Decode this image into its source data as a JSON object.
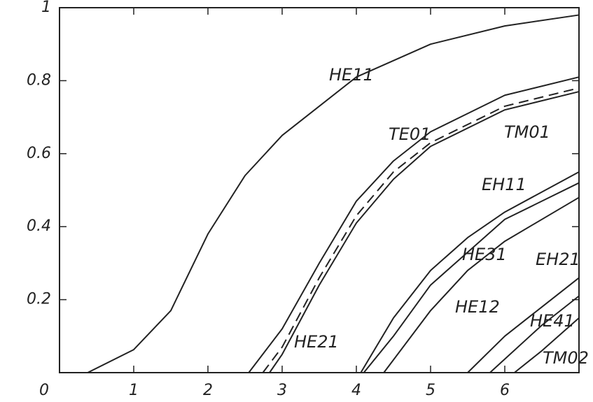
{
  "chart_data": {
    "type": "line",
    "xlim": [
      0,
      7
    ],
    "ylim": [
      0,
      1
    ],
    "xticks": [
      0,
      1,
      2,
      3,
      4,
      5,
      6
    ],
    "yticks": [
      0.2,
      0.4,
      0.6,
      0.8,
      1
    ],
    "grid": false,
    "series": [
      {
        "name": "HE11",
        "color": "#222222",
        "dashed": false,
        "x": [
          0.38,
          1,
          1.5,
          2,
          2.5,
          3,
          3.5,
          4,
          5,
          6,
          7
        ],
        "values": [
          0,
          0.063,
          0.17,
          0.38,
          0.54,
          0.65,
          0.73,
          0.81,
          0.9,
          0.95,
          0.98
        ]
      },
      {
        "name": "TE01",
        "color": "#222222",
        "dashed": false,
        "x": [
          2.55,
          3,
          3.5,
          4,
          4.5,
          5,
          5.5,
          6,
          7
        ],
        "values": [
          0,
          0.12,
          0.3,
          0.47,
          0.58,
          0.66,
          0.71,
          0.76,
          0.81
        ]
      },
      {
        "name": "TM01",
        "color": "#222222",
        "dashed": true,
        "x": [
          2.74,
          3,
          3.5,
          4,
          4.5,
          5,
          6,
          7
        ],
        "values": [
          0,
          0.07,
          0.26,
          0.43,
          0.55,
          0.63,
          0.73,
          0.78
        ]
      },
      {
        "name": "HE21",
        "color": "#222222",
        "dashed": false,
        "x": [
          2.83,
          3,
          3.5,
          4,
          4.5,
          5,
          6,
          7
        ],
        "values": [
          0,
          0.05,
          0.24,
          0.41,
          0.53,
          0.62,
          0.72,
          0.77
        ]
      },
      {
        "name": "EH11",
        "color": "#222222",
        "dashed": false,
        "x": [
          4.06,
          4.5,
          5,
          5.5,
          6,
          7
        ],
        "values": [
          0,
          0.15,
          0.28,
          0.37,
          0.44,
          0.55
        ]
      },
      {
        "name": "HE31",
        "color": "#222222",
        "dashed": false,
        "x": [
          4.1,
          4.5,
          5,
          5.5,
          6,
          7
        ],
        "values": [
          0,
          0.1,
          0.24,
          0.33,
          0.42,
          0.52
        ]
      },
      {
        "name": "HE12",
        "color": "#222222",
        "dashed": false,
        "x": [
          4.37,
          5,
          5.5,
          6,
          7
        ],
        "values": [
          0,
          0.17,
          0.28,
          0.36,
          0.48
        ]
      },
      {
        "name": "EH21",
        "color": "#222222",
        "dashed": false,
        "x": [
          5.5,
          6,
          6.5,
          7
        ],
        "values": [
          0,
          0.1,
          0.18,
          0.26
        ]
      },
      {
        "name": "HE41",
        "color": "#222222",
        "dashed": false,
        "x": [
          5.8,
          6.5,
          7
        ],
        "values": [
          0,
          0.13,
          0.21
        ]
      },
      {
        "name": "TM02",
        "color": "#222222",
        "dashed": false,
        "x": [
          6.13,
          6.5,
          7
        ],
        "values": [
          0,
          0.06,
          0.15
        ]
      }
    ]
  }
}
